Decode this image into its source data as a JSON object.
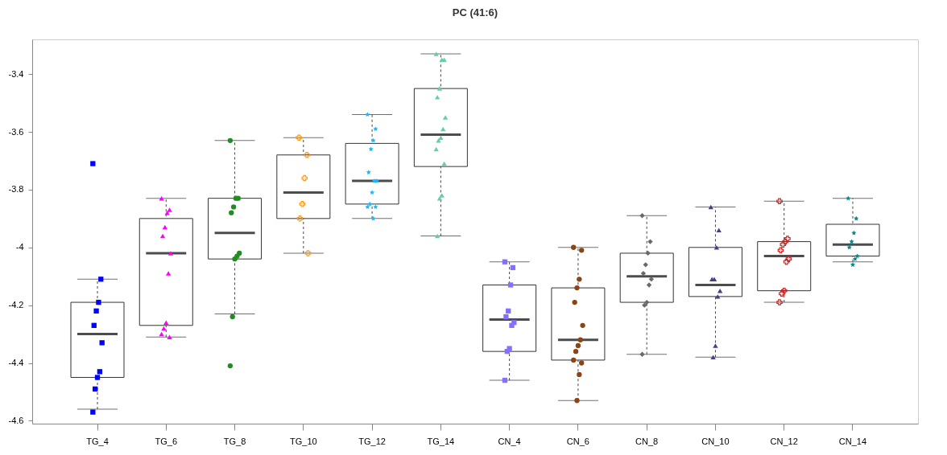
{
  "chart_data": {
    "type": "box",
    "title": "PC (41:6)",
    "categories": [
      "TG_4",
      "TG_6",
      "TG_8",
      "TG_10",
      "TG_12",
      "TG_14",
      "CN_4",
      "CN_6",
      "CN_8",
      "CN_10",
      "CN_12",
      "CN_14"
    ],
    "ylim": [
      -4.61,
      -3.28
    ],
    "yticks": [
      -4.6,
      -4.4,
      -4.2,
      -4.0,
      -3.8,
      -3.6,
      -3.4
    ],
    "grid": false,
    "boxes": [
      {
        "low": -4.56,
        "q1": -4.45,
        "median": -4.3,
        "q3": -4.19,
        "high": -4.11
      },
      {
        "low": -4.31,
        "q1": -4.27,
        "median": -4.02,
        "q3": -3.9,
        "high": -3.83
      },
      {
        "low": -4.23,
        "q1": -4.04,
        "median": -3.95,
        "q3": -3.83,
        "high": -3.63
      },
      {
        "low": -4.02,
        "q1": -3.9,
        "median": -3.81,
        "q3": -3.68,
        "high": -3.62
      },
      {
        "low": -3.9,
        "q1": -3.85,
        "median": -3.77,
        "q3": -3.64,
        "high": -3.54
      },
      {
        "low": -3.96,
        "q1": -3.72,
        "median": -3.61,
        "q3": -3.45,
        "high": -3.33
      },
      {
        "low": -4.46,
        "q1": -4.36,
        "median": -4.25,
        "q3": -4.13,
        "high": -4.05
      },
      {
        "low": -4.53,
        "q1": -4.39,
        "median": -4.32,
        "q3": -4.14,
        "high": -4.0
      },
      {
        "low": -4.37,
        "q1": -4.19,
        "median": -4.1,
        "q3": -4.02,
        "high": -3.89
      },
      {
        "low": -4.38,
        "q1": -4.17,
        "median": -4.13,
        "q3": -4.0,
        "high": -3.86
      },
      {
        "low": -4.19,
        "q1": -4.15,
        "median": -4.03,
        "q3": -3.98,
        "high": -3.84
      },
      {
        "low": -4.05,
        "q1": -4.03,
        "median": -3.99,
        "q3": -3.92,
        "high": -3.83
      }
    ],
    "series": [
      {
        "type": "scatter",
        "color": "#0000ff",
        "marker": "square",
        "x": [
          "TG_4",
          "TG_4",
          "TG_4",
          "TG_4",
          "TG_4",
          "TG_4",
          "TG_4",
          "TG_4",
          "TG_4",
          "TG_4"
        ],
        "values": [
          -3.71,
          -4.11,
          -4.19,
          -4.22,
          -4.27,
          -4.33,
          -4.43,
          -4.45,
          -4.49,
          -4.57
        ]
      },
      {
        "type": "scatter",
        "color": "#ff00ff",
        "marker": "triangle",
        "x": [
          "TG_6",
          "TG_6",
          "TG_6",
          "TG_6",
          "TG_6",
          "TG_6",
          "TG_6",
          "TG_6",
          "TG_6",
          "TG_6",
          "TG_6"
        ],
        "values": [
          -3.83,
          -3.87,
          -3.88,
          -3.93,
          -3.96,
          -4.02,
          -4.09,
          -4.26,
          -4.28,
          -4.3,
          -4.31
        ]
      },
      {
        "type": "scatter",
        "color": "#228b22",
        "marker": "circle",
        "x": [
          "TG_8",
          "TG_8",
          "TG_8",
          "TG_8",
          "TG_8",
          "TG_8",
          "TG_8",
          "TG_8",
          "TG_8",
          "TG_8"
        ],
        "values": [
          -3.63,
          -3.83,
          -3.83,
          -3.86,
          -3.88,
          -4.02,
          -4.03,
          -4.04,
          -4.24,
          -4.41
        ]
      },
      {
        "type": "scatter",
        "color": "#ff9a1a",
        "marker": "cross",
        "x": [
          "TG_10",
          "TG_10",
          "TG_10",
          "TG_10",
          "TG_10",
          "TG_10"
        ],
        "values": [
          -3.62,
          -3.68,
          -3.76,
          -3.85,
          -3.9,
          -4.02
        ]
      },
      {
        "type": "scatter",
        "color": "#1ab8ff",
        "marker": "star",
        "x": [
          "TG_12",
          "TG_12",
          "TG_12",
          "TG_12",
          "TG_12",
          "TG_12",
          "TG_12",
          "TG_12",
          "TG_12",
          "TG_12",
          "TG_12",
          "TG_12"
        ],
        "values": [
          -3.54,
          -3.59,
          -3.63,
          -3.66,
          -3.74,
          -3.77,
          -3.77,
          -3.81,
          -3.85,
          -3.86,
          -3.86,
          -3.9
        ]
      },
      {
        "type": "scatter",
        "color": "#66cdaa",
        "marker": "triangle",
        "x": [
          "TG_14",
          "TG_14",
          "TG_14",
          "TG_14",
          "TG_14",
          "TG_14",
          "TG_14",
          "TG_14",
          "TG_14",
          "TG_14",
          "TG_14",
          "TG_14",
          "TG_14",
          "TG_14"
        ],
        "values": [
          -3.33,
          -3.35,
          -3.35,
          -3.45,
          -3.48,
          -3.55,
          -3.59,
          -3.62,
          -3.63,
          -3.66,
          -3.71,
          -3.82,
          -3.83,
          -3.96
        ]
      },
      {
        "type": "scatter",
        "color": "#8470ff",
        "marker": "square",
        "x": [
          "CN_4",
          "CN_4",
          "CN_4",
          "CN_4",
          "CN_4",
          "CN_4",
          "CN_4",
          "CN_4",
          "CN_4",
          "CN_4"
        ],
        "values": [
          -4.05,
          -4.07,
          -4.13,
          -4.22,
          -4.24,
          -4.26,
          -4.27,
          -4.35,
          -4.36,
          -4.46
        ]
      },
      {
        "type": "scatter",
        "color": "#8b4513",
        "marker": "circle",
        "x": [
          "CN_6",
          "CN_6",
          "CN_6",
          "CN_6",
          "CN_6",
          "CN_6",
          "CN_6",
          "CN_6",
          "CN_6",
          "CN_6",
          "CN_6",
          "CN_6",
          "CN_6"
        ],
        "values": [
          -4.0,
          -4.01,
          -4.11,
          -4.14,
          -4.19,
          -4.27,
          -4.32,
          -4.34,
          -4.36,
          -4.39,
          -4.4,
          -4.44,
          -4.53
        ]
      },
      {
        "type": "scatter",
        "color": "#696969",
        "marker": "diamond",
        "x": [
          "CN_8",
          "CN_8",
          "CN_8",
          "CN_8",
          "CN_8",
          "CN_8",
          "CN_8",
          "CN_8",
          "CN_8",
          "CN_8"
        ],
        "values": [
          -3.89,
          -3.98,
          -4.02,
          -4.06,
          -4.09,
          -4.11,
          -4.13,
          -4.19,
          -4.2,
          -4.37
        ]
      },
      {
        "type": "scatter",
        "color": "#483d8b",
        "marker": "triangle",
        "x": [
          "CN_10",
          "CN_10",
          "CN_10",
          "CN_10",
          "CN_10",
          "CN_10",
          "CN_10",
          "CN_10",
          "CN_10"
        ],
        "values": [
          -3.86,
          -3.94,
          -4.0,
          -4.11,
          -4.11,
          -4.15,
          -4.17,
          -4.34,
          -4.38
        ]
      },
      {
        "type": "scatter",
        "color": "#cd2626",
        "marker": "cross",
        "x": [
          "CN_12",
          "CN_12",
          "CN_12",
          "CN_12",
          "CN_12",
          "CN_12",
          "CN_12",
          "CN_12",
          "CN_12",
          "CN_12"
        ],
        "values": [
          -3.84,
          -3.97,
          -3.98,
          -3.99,
          -4.01,
          -4.04,
          -4.05,
          -4.15,
          -4.16,
          -4.19
        ]
      },
      {
        "type": "scatter",
        "color": "#008b8b",
        "marker": "star",
        "x": [
          "CN_14",
          "CN_14",
          "CN_14",
          "CN_14",
          "CN_14",
          "CN_14",
          "CN_14",
          "CN_14"
        ],
        "values": [
          -3.83,
          -3.9,
          -3.95,
          -3.98,
          -4.0,
          -4.03,
          -4.04,
          -4.06
        ]
      }
    ]
  }
}
